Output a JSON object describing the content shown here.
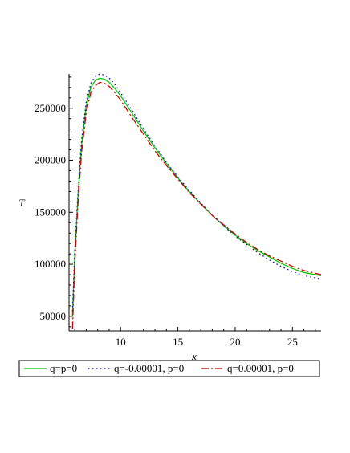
{
  "chart_data": {
    "type": "line",
    "title": "",
    "xlabel": "x",
    "ylabel": "T",
    "xlim": [
      5.5,
      27.5
    ],
    "ylim": [
      36000,
      283000
    ],
    "x_ticks": [
      10,
      15,
      20,
      25
    ],
    "y_ticks": [
      50000,
      100000,
      150000,
      200000,
      250000
    ],
    "x_tick_labels": [
      "10",
      "15",
      "20",
      "25"
    ],
    "y_tick_labels": [
      "50000",
      "100000",
      "150000",
      "200000",
      "250000"
    ],
    "grid": false,
    "legend_position": "bottom",
    "series": [
      {
        "name": "q=p=0",
        "color": "#00cc00",
        "dash": "solid",
        "x": [
          5.8,
          6.0,
          6.3,
          6.6,
          7.0,
          7.4,
          7.8,
          8.2,
          8.6,
          9.0,
          9.5,
          10.0,
          11.0,
          12.0,
          13.0,
          14.0,
          15.0,
          16.0,
          17.0,
          18.0,
          19.0,
          20.0,
          21.0,
          22.0,
          23.0,
          24.0,
          25.0,
          26.0,
          27.5
        ],
        "y": [
          50000,
          108000,
          170000,
          215000,
          252000,
          270000,
          277000,
          279000,
          278000,
          275000,
          269000,
          262000,
          245000,
          228000,
          212000,
          197000,
          183000,
          170000,
          158000,
          147000,
          137000,
          128000,
          120000,
          113000,
          107000,
          101000,
          96000,
          92000,
          89000
        ]
      },
      {
        "name": "q=-0.00001, p=0",
        "color": "#0000cc",
        "dash": "dot",
        "x": [
          5.8,
          6.0,
          6.3,
          6.6,
          7.0,
          7.4,
          7.8,
          8.2,
          8.6,
          9.0,
          9.5,
          10.0,
          11.0,
          12.0,
          13.0,
          14.0,
          15.0,
          16.0,
          17.0,
          18.0,
          19.0,
          20.0,
          21.0,
          22.0,
          23.0,
          24.0,
          25.0,
          26.0,
          27.5
        ],
        "y": [
          55000,
          113000,
          175000,
          220000,
          256000,
          274000,
          281000,
          283000,
          282000,
          279000,
          273000,
          265000,
          248000,
          230000,
          214000,
          198000,
          184000,
          171000,
          159000,
          147000,
          137000,
          127000,
          119000,
          111000,
          104000,
          98000,
          93000,
          89000,
          86000
        ]
      },
      {
        "name": "q=0.00001, p=0",
        "color": "#cc0000",
        "dash": "dashdot",
        "x": [
          5.8,
          6.0,
          6.3,
          6.6,
          7.0,
          7.4,
          7.8,
          8.2,
          8.6,
          9.0,
          9.5,
          10.0,
          11.0,
          12.0,
          13.0,
          14.0,
          15.0,
          16.0,
          17.0,
          18.0,
          19.0,
          20.0,
          21.0,
          22.0,
          23.0,
          24.0,
          25.0,
          26.0,
          27.5
        ],
        "y": [
          38000,
          100000,
          162000,
          208000,
          246000,
          265000,
          272000,
          275000,
          274000,
          271000,
          265000,
          258000,
          241000,
          225000,
          209000,
          195000,
          182000,
          169000,
          158000,
          147000,
          138000,
          129000,
          121000,
          114000,
          108000,
          103000,
          98000,
          94000,
          90000
        ]
      }
    ]
  }
}
